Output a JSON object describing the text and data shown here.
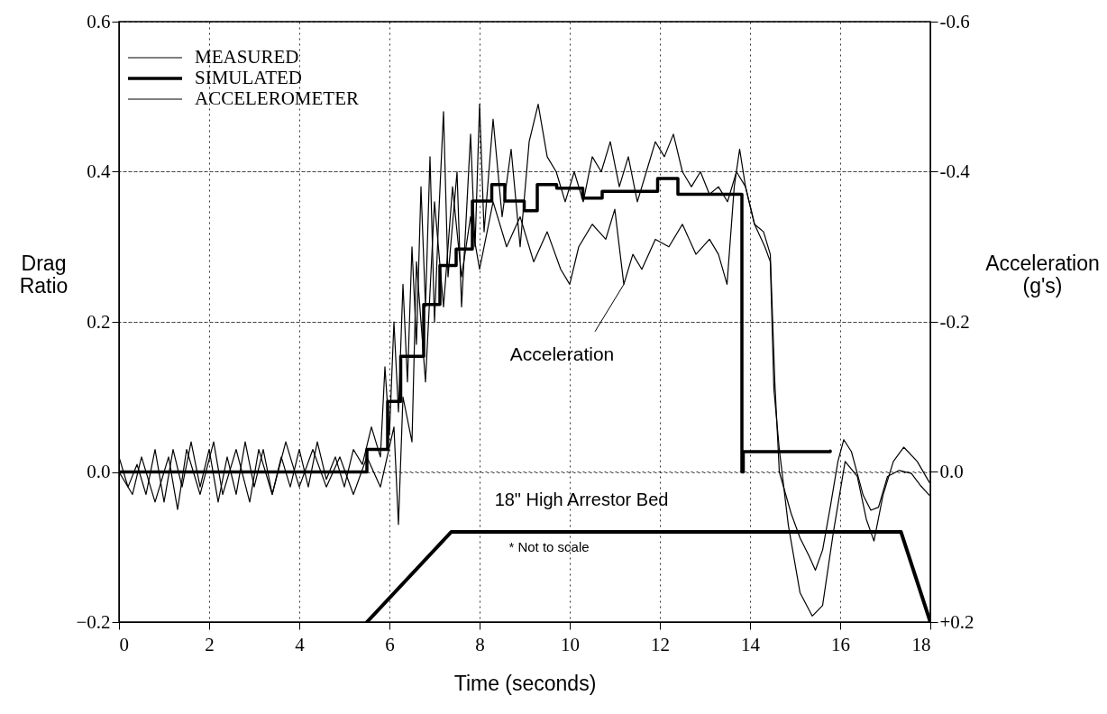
{
  "chart_data": {
    "type": "line",
    "xlabel": "Time (seconds)",
    "ylabel": "Drag Ratio",
    "y2label": "Acceleration (g's)",
    "xlim": [
      0,
      18
    ],
    "xticks": [
      0,
      2,
      4,
      6,
      8,
      10,
      12,
      14,
      16,
      18
    ],
    "ylim": [
      -0.2,
      0.6
    ],
    "yticks": [
      {
        "value": -0.2,
        "label": "−0.2"
      },
      {
        "value": 0,
        "label": "0.0"
      },
      {
        "value": 0.2,
        "label": "0.2"
      },
      {
        "value": 0.4,
        "label": "0.4"
      },
      {
        "value": 0.6,
        "label": "0.6"
      }
    ],
    "y2lim": [
      0.2,
      -0.6
    ],
    "y2ticks": [
      {
        "value": 0.2,
        "label": "+0.2"
      },
      {
        "value": 0,
        "label": "0.0"
      },
      -0.2,
      -0.4,
      -0.6
    ],
    "grid": true,
    "legend": "top left",
    "annotations": [
      {
        "text": "Acceleration",
        "x": 11.2,
        "y": 0.25
      },
      "18\" High Arrestor Bed",
      "* Not to scale"
    ],
    "series": [
      {
        "name": "MEASURED",
        "color": "#000000",
        "x": [
          0,
          0.2,
          0.4,
          0.6,
          0.8,
          1.0,
          1.2,
          1.4,
          1.6,
          1.8,
          2.0,
          2.2,
          2.4,
          2.6,
          2.8,
          3.0,
          3.2,
          3.4,
          3.6,
          3.8,
          4.0,
          4.2,
          4.4,
          4.6,
          4.8,
          5.0,
          5.2,
          5.4,
          5.6,
          5.8,
          5.9,
          6.0,
          6.1,
          6.2,
          6.3,
          6.4,
          6.5,
          6.6,
          6.7,
          6.8,
          6.9,
          7.0,
          7.1,
          7.2,
          7.3,
          7.5,
          7.6,
          7.8,
          7.9,
          8.0,
          8.1,
          8.3,
          8.5,
          8.7,
          8.9,
          9.1,
          9.3,
          9.5,
          9.7,
          9.9,
          10.1,
          10.3,
          10.5,
          10.7,
          10.9,
          11.1,
          11.3,
          11.5,
          11.7,
          11.9,
          12.1,
          12.3,
          12.5,
          12.7,
          12.9,
          13.1,
          13.3,
          13.5,
          13.7,
          13.9,
          14.1,
          14.3,
          14.45,
          14.55,
          14.65,
          14.91,
          15.11,
          15.31,
          15.45,
          15.61,
          15.78,
          15.95,
          16.08,
          16.25,
          16.51,
          16.68,
          16.85,
          17.05,
          17.31,
          17.58,
          17.78,
          17.98
        ],
        "values": [
          0.02,
          -0.02,
          0.01,
          -0.03,
          0.03,
          -0.04,
          0.03,
          -0.02,
          0.04,
          -0.02,
          0.03,
          -0.04,
          0.02,
          -0.03,
          0.04,
          -0.02,
          0.03,
          -0.03,
          0.02,
          -0.02,
          0.03,
          -0.02,
          0.04,
          -0.01,
          0.02,
          -0.02,
          0.03,
          0.01,
          0.06,
          0.02,
          0.14,
          0.05,
          0.2,
          0.08,
          0.25,
          0.12,
          0.3,
          0.17,
          0.38,
          0.22,
          0.42,
          0.2,
          0.35,
          0.48,
          0.26,
          0.4,
          0.22,
          0.45,
          0.3,
          0.49,
          0.32,
          0.47,
          0.34,
          0.43,
          0.3,
          0.44,
          0.49,
          0.42,
          0.4,
          0.36,
          0.4,
          0.36,
          0.42,
          0.4,
          0.44,
          0.38,
          0.42,
          0.36,
          0.4,
          0.44,
          0.42,
          0.45,
          0.4,
          0.38,
          0.4,
          0.37,
          0.38,
          0.36,
          0.4,
          0.38,
          0.33,
          0.32,
          0.29,
          0.12,
          0.0,
          -0.055,
          -0.088,
          -0.112,
          -0.131,
          -0.104,
          -0.047,
          0.014,
          0.043,
          0.027,
          -0.031,
          -0.051,
          -0.047,
          -0.006,
          0.002,
          -0.002,
          -0.018,
          -0.031
        ]
      },
      {
        "name": "SIMULATED",
        "color": "#000000",
        "type": "step",
        "x": [
          0,
          5.5,
          5.96,
          6.25,
          6.76,
          7.12,
          7.48,
          7.84,
          8.27,
          8.56,
          8.99,
          9.28,
          9.71,
          10.29,
          10.72,
          11.95,
          12.4,
          13.82,
          13.85,
          15.78
        ],
        "values": [
          0.0,
          0.03,
          0.094,
          0.154,
          0.223,
          0.275,
          0.297,
          0.361,
          0.383,
          0.361,
          0.348,
          0.383,
          0.378,
          0.365,
          0.374,
          0.391,
          0.37,
          0.0,
          0.027,
          0.028
        ]
      },
      {
        "name": "ACCELEROMETER",
        "color": "#000000",
        "axis": "y2",
        "x": [
          0,
          0.3,
          0.5,
          0.8,
          1.1,
          1.3,
          1.5,
          1.8,
          2.1,
          2.3,
          2.6,
          2.9,
          3.1,
          3.4,
          3.7,
          4.0,
          4.3,
          4.6,
          4.9,
          5.2,
          5.5,
          5.8,
          6.1,
          6.2,
          6.3,
          6.5,
          6.6,
          6.8,
          7.0,
          7.2,
          7.4,
          7.6,
          7.8,
          8.0,
          8.3,
          8.6,
          8.9,
          9.2,
          9.5,
          9.8,
          10.0,
          10.2,
          10.5,
          10.8,
          11.0,
          11.2,
          11.4,
          11.6,
          11.9,
          12.2,
          12.5,
          12.8,
          13.1,
          13.3,
          13.49,
          13.65,
          13.77,
          13.9,
          14.1,
          14.33,
          14.45,
          14.53,
          14.65,
          14.85,
          15.11,
          15.38,
          15.61,
          15.85,
          16.11,
          16.38,
          16.58,
          16.75,
          16.95,
          17.18,
          17.41,
          17.71,
          17.98
        ],
        "values": [
          0.0,
          0.03,
          -0.02,
          0.04,
          -0.02,
          0.05,
          -0.03,
          0.03,
          -0.04,
          0.03,
          -0.03,
          0.04,
          -0.03,
          0.03,
          -0.04,
          0.02,
          -0.03,
          0.02,
          -0.02,
          0.03,
          -0.02,
          0.02,
          -0.06,
          0.07,
          -0.1,
          -0.04,
          -0.28,
          -0.12,
          -0.36,
          -0.22,
          -0.38,
          -0.26,
          -0.34,
          -0.27,
          -0.36,
          -0.3,
          -0.34,
          -0.28,
          -0.32,
          -0.27,
          -0.25,
          -0.3,
          -0.33,
          -0.31,
          -0.35,
          -0.25,
          -0.29,
          -0.27,
          -0.31,
          -0.3,
          -0.33,
          -0.29,
          -0.31,
          -0.29,
          -0.25,
          -0.38,
          -0.43,
          -0.38,
          -0.33,
          -0.3,
          -0.28,
          -0.11,
          -0.03,
          0.071,
          0.161,
          0.192,
          0.178,
          0.08,
          -0.014,
          0.006,
          0.063,
          0.092,
          0.031,
          -0.014,
          -0.033,
          -0.014,
          0.014
        ]
      },
      {
        "color": "#000000",
        "x": [
          5.5,
          7.37,
          17.35,
          18
        ],
        "values": [
          -0.2,
          -0.08,
          -0.08,
          -0.2
        ]
      }
    ]
  }
}
